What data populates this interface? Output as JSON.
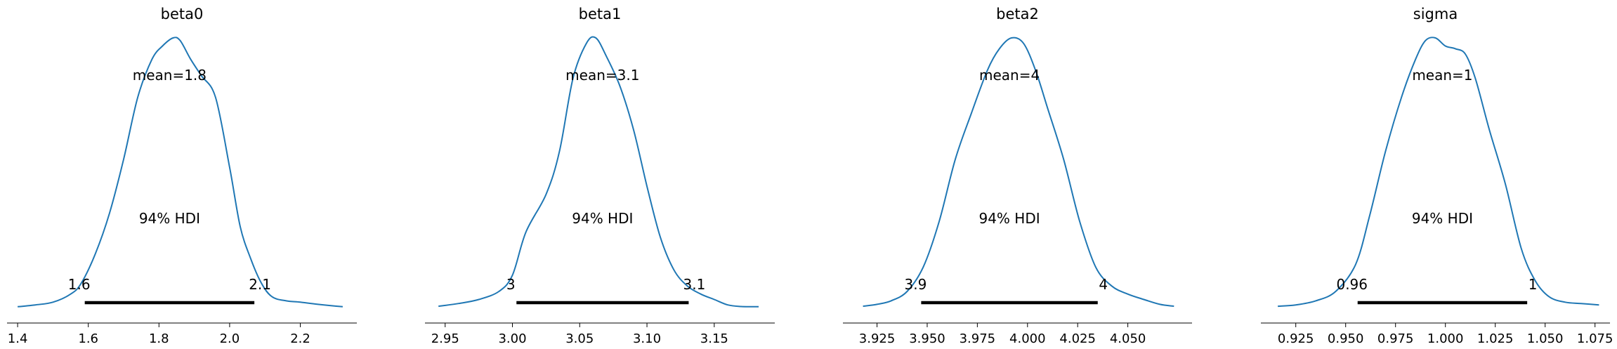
{
  "chart_data": [
    {
      "type": "line",
      "title": "beta0",
      "xlabel": "",
      "ylabel": "",
      "xlim": [
        1.37,
        2.36
      ],
      "ticks": [
        {
          "value": 1.4,
          "label": "1.4"
        },
        {
          "value": 1.6,
          "label": "1.6"
        },
        {
          "value": 1.8,
          "label": "1.8"
        },
        {
          "value": 2.0,
          "label": "2.0"
        },
        {
          "value": 2.2,
          "label": "2.2"
        }
      ],
      "mean_label": "mean=1.8",
      "hdi_label": "94% HDI",
      "hdi": [
        1.59,
        2.07
      ],
      "hdi_low_label": "1.6",
      "hdi_high_label": "2.1",
      "x": [
        1.4,
        1.45,
        1.5,
        1.55,
        1.58,
        1.62,
        1.66,
        1.7,
        1.74,
        1.78,
        1.81,
        1.84,
        1.86,
        1.89,
        1.92,
        1.96,
        2.0,
        2.03,
        2.06,
        2.09,
        2.12,
        2.16,
        2.2,
        2.25,
        2.32
      ],
      "density": [
        0.003,
        0.01,
        0.02,
        0.05,
        0.09,
        0.2,
        0.35,
        0.55,
        0.78,
        0.92,
        0.97,
        1.0,
        0.99,
        0.92,
        0.86,
        0.78,
        0.52,
        0.3,
        0.18,
        0.09,
        0.04,
        0.025,
        0.02,
        0.012,
        0.003
      ]
    },
    {
      "type": "line",
      "title": "beta1",
      "xlabel": "",
      "ylabel": "",
      "xlim": [
        2.935,
        3.195
      ],
      "ticks": [
        {
          "value": 2.95,
          "label": "2.95"
        },
        {
          "value": 3.0,
          "label": "3.00"
        },
        {
          "value": 3.05,
          "label": "3.05"
        },
        {
          "value": 3.1,
          "label": "3.10"
        },
        {
          "value": 3.15,
          "label": "3.15"
        }
      ],
      "mean_label": "mean=3.1",
      "hdi_label": "94% HDI",
      "hdi": [
        3.003,
        3.131
      ],
      "hdi_low_label": "3",
      "hdi_high_label": "3.1",
      "x": [
        2.945,
        2.96,
        2.975,
        2.99,
        3.0,
        3.01,
        3.025,
        3.035,
        3.045,
        3.055,
        3.062,
        3.07,
        3.08,
        3.09,
        3.1,
        3.11,
        3.12,
        3.13,
        3.14,
        3.15,
        3.16,
        3.17,
        3.183
      ],
      "density": [
        0.005,
        0.015,
        0.03,
        0.06,
        0.12,
        0.28,
        0.42,
        0.58,
        0.85,
        0.98,
        1.0,
        0.93,
        0.82,
        0.66,
        0.45,
        0.26,
        0.14,
        0.08,
        0.05,
        0.03,
        0.01,
        0.004,
        0.003
      ]
    },
    {
      "type": "line",
      "title": "beta2",
      "xlabel": "",
      "ylabel": "",
      "xlim": [
        3.908,
        4.082
      ],
      "ticks": [
        {
          "value": 3.925,
          "label": "3.925"
        },
        {
          "value": 3.95,
          "label": "3.950"
        },
        {
          "value": 3.975,
          "label": "3.975"
        },
        {
          "value": 4.0,
          "label": "4.000"
        },
        {
          "value": 4.025,
          "label": "4.025"
        },
        {
          "value": 4.05,
          "label": "4.050"
        }
      ],
      "mean_label": "mean=4",
      "hdi_label": "94% HDI",
      "hdi": [
        3.947,
        4.035
      ],
      "hdi_low_label": "3.9",
      "hdi_high_label": "4",
      "x": [
        3.918,
        3.925,
        3.932,
        3.94,
        3.948,
        3.956,
        3.964,
        3.972,
        3.98,
        3.986,
        3.992,
        3.998,
        4.004,
        4.01,
        4.018,
        4.026,
        4.034,
        4.042,
        4.05,
        4.058,
        4.066,
        4.073
      ],
      "density": [
        0.005,
        0.012,
        0.025,
        0.06,
        0.15,
        0.32,
        0.55,
        0.72,
        0.88,
        0.96,
        1.0,
        0.98,
        0.88,
        0.74,
        0.55,
        0.32,
        0.15,
        0.08,
        0.05,
        0.03,
        0.012,
        0.005
      ]
    },
    {
      "type": "line",
      "title": "sigma",
      "xlabel": "",
      "ylabel": "",
      "xlim": [
        0.9075,
        1.0825
      ],
      "ticks": [
        {
          "value": 0.925,
          "label": "0.925"
        },
        {
          "value": 0.95,
          "label": "0.950"
        },
        {
          "value": 0.975,
          "label": "0.975"
        },
        {
          "value": 1.0,
          "label": "1.000"
        },
        {
          "value": 1.025,
          "label": "1.025"
        },
        {
          "value": 1.05,
          "label": "1.050"
        },
        {
          "value": 1.075,
          "label": "1.075"
        }
      ],
      "mean_label": "mean=1",
      "hdi_label": "94% HDI",
      "hdi": [
        0.956,
        1.041
      ],
      "hdi_low_label": "0.96",
      "hdi_high_label": "1",
      "x": [
        0.916,
        0.925,
        0.935,
        0.945,
        0.955,
        0.962,
        0.97,
        0.978,
        0.985,
        0.99,
        0.995,
        1.0,
        1.005,
        1.01,
        1.015,
        1.022,
        1.03,
        1.038,
        1.045,
        1.052,
        1.06,
        1.068,
        1.077
      ],
      "density": [
        0.005,
        0.01,
        0.025,
        0.06,
        0.16,
        0.34,
        0.58,
        0.78,
        0.92,
        0.99,
        1.0,
        0.97,
        0.96,
        0.94,
        0.85,
        0.66,
        0.46,
        0.22,
        0.1,
        0.04,
        0.02,
        0.015,
        0.01
      ]
    }
  ]
}
